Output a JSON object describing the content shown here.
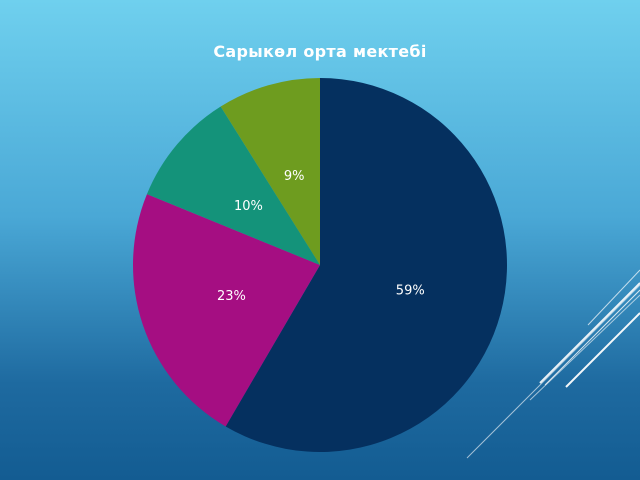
{
  "chart_data": {
    "type": "pie",
    "title": "Сарыкөл орта мектебі",
    "categories": [
      "",
      "",
      "",
      ""
    ],
    "values": [
      59,
      23,
      10,
      9
    ],
    "labels": [
      "59%",
      "23%",
      "10%",
      "9%"
    ],
    "colors": [
      "#05305f",
      "#a50e82",
      "#14937a",
      "#6e9c1f"
    ],
    "legend": "none"
  },
  "colors": {
    "background_top": "#6fd0ee",
    "background_bottom": "#135c92",
    "title_text": "#ffffff"
  }
}
